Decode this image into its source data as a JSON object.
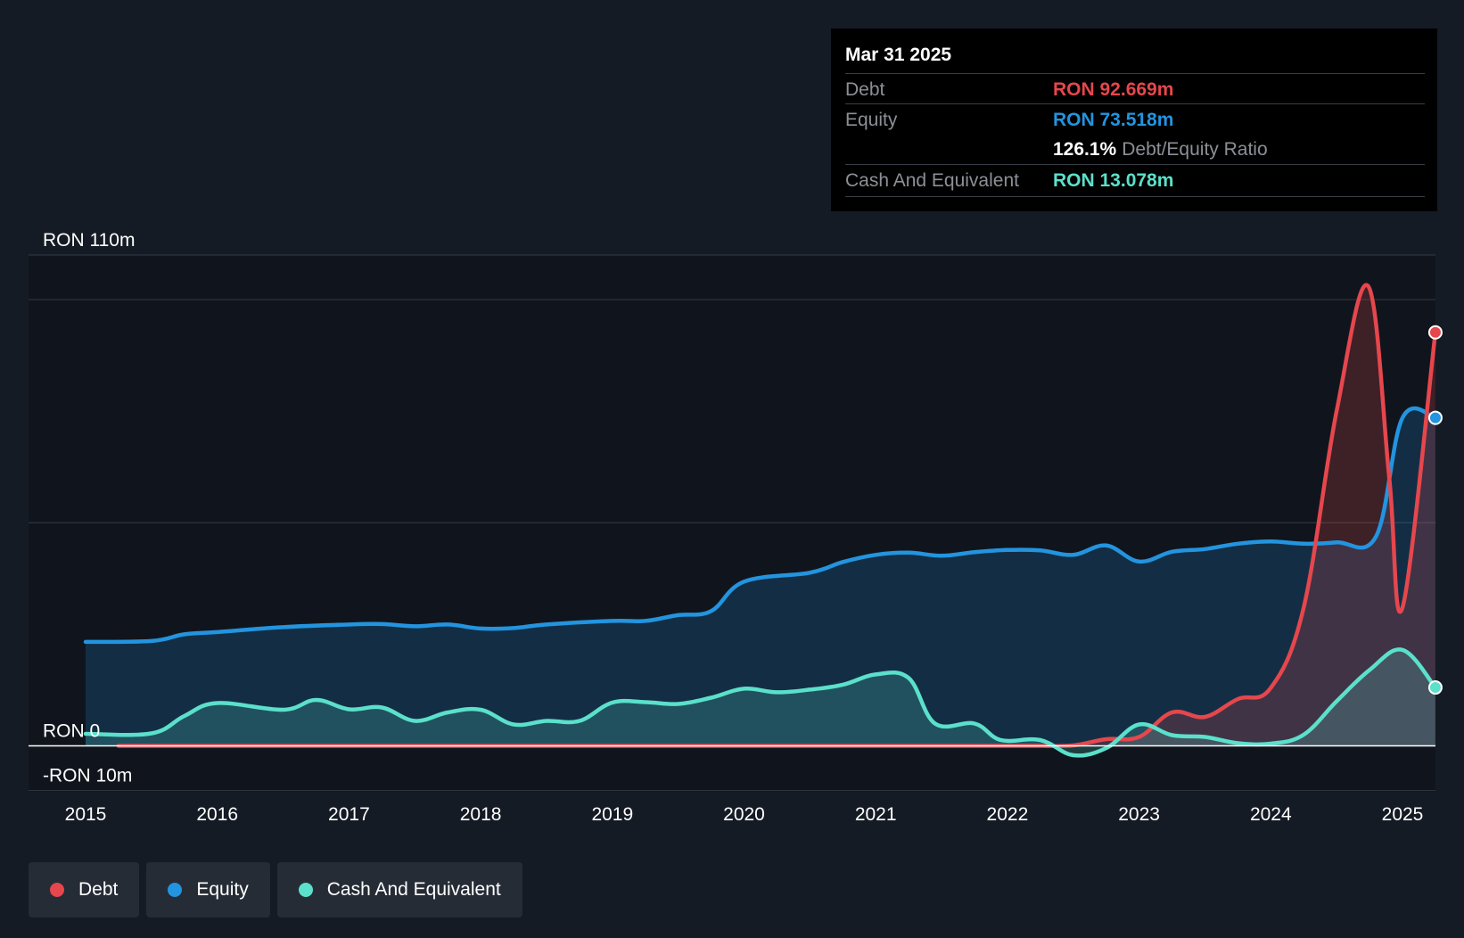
{
  "chart_data": {
    "type": "area",
    "title": "",
    "xlabel": "",
    "ylabel": "",
    "ylim": [
      -10,
      110
    ],
    "y_tick_labels": [
      {
        "value": 110,
        "label": "RON 110m"
      },
      {
        "value": 0,
        "label": "RON 0"
      },
      {
        "value": -10,
        "label": "-RON 10m"
      }
    ],
    "x_ticks": [
      {
        "value": 2015,
        "label": "2015"
      },
      {
        "value": 2016,
        "label": "2016"
      },
      {
        "value": 2017,
        "label": "2017"
      },
      {
        "value": 2018,
        "label": "2018"
      },
      {
        "value": 2019,
        "label": "2019"
      },
      {
        "value": 2020,
        "label": "2020"
      },
      {
        "value": 2021,
        "label": "2021"
      },
      {
        "value": 2022,
        "label": "2022"
      },
      {
        "value": 2023,
        "label": "2023"
      },
      {
        "value": 2024,
        "label": "2024"
      },
      {
        "value": 2025,
        "label": "2025"
      }
    ],
    "xlim": [
      2014.57,
      2025.25
    ],
    "series": [
      {
        "name": "Debt",
        "color": "#e5474d",
        "points": [
          [
            2015.25,
            0
          ],
          [
            2016,
            0
          ],
          [
            2017,
            0
          ],
          [
            2018,
            0
          ],
          [
            2019,
            0
          ],
          [
            2020,
            0
          ],
          [
            2021,
            0
          ],
          [
            2022,
            0
          ],
          [
            2022.25,
            0
          ],
          [
            2022.5,
            0.1
          ],
          [
            2022.75,
            1.5
          ],
          [
            2023,
            2
          ],
          [
            2023.25,
            7.5
          ],
          [
            2023.5,
            6.5
          ],
          [
            2023.75,
            10.5
          ],
          [
            2024,
            13
          ],
          [
            2024.25,
            31
          ],
          [
            2024.5,
            75
          ],
          [
            2024.74,
            103
          ],
          [
            2024.9,
            60
          ],
          [
            2025,
            31
          ],
          [
            2025.25,
            92.669
          ]
        ]
      },
      {
        "name": "Equity",
        "color": "#2394df",
        "points": [
          [
            2015,
            23.3
          ],
          [
            2015.5,
            23.5
          ],
          [
            2015.75,
            25
          ],
          [
            2016,
            25.5
          ],
          [
            2016.5,
            26.6
          ],
          [
            2017,
            27.2
          ],
          [
            2017.25,
            27.3
          ],
          [
            2017.5,
            26.8
          ],
          [
            2017.75,
            27.2
          ],
          [
            2018,
            26.3
          ],
          [
            2018.25,
            26.4
          ],
          [
            2018.5,
            27.2
          ],
          [
            2019,
            28
          ],
          [
            2019.25,
            28
          ],
          [
            2019.5,
            29.3
          ],
          [
            2019.75,
            30.2
          ],
          [
            2020,
            36.8
          ],
          [
            2020.5,
            38.8
          ],
          [
            2020.75,
            41.2
          ],
          [
            2021,
            42.8
          ],
          [
            2021.25,
            43.3
          ],
          [
            2021.5,
            42.6
          ],
          [
            2021.75,
            43.4
          ],
          [
            2022,
            43.9
          ],
          [
            2022.25,
            43.8
          ],
          [
            2022.5,
            42.8
          ],
          [
            2022.75,
            44.9
          ],
          [
            2023,
            41.3
          ],
          [
            2023.25,
            43.5
          ],
          [
            2023.5,
            44.1
          ],
          [
            2023.75,
            45.3
          ],
          [
            2024,
            45.8
          ],
          [
            2024.25,
            45.3
          ],
          [
            2024.5,
            45.6
          ],
          [
            2024.8,
            47
          ],
          [
            2025,
            73.518
          ],
          [
            2025.25,
            73.518
          ]
        ]
      },
      {
        "name": "Cash And Equivalent",
        "color": "#5be0cb",
        "points": [
          [
            2015,
            2.7
          ],
          [
            2015.5,
            2.8
          ],
          [
            2015.75,
            6.7
          ],
          [
            2016,
            9.6
          ],
          [
            2016.5,
            8.1
          ],
          [
            2016.75,
            10.3
          ],
          [
            2017,
            8.2
          ],
          [
            2017.25,
            8.6
          ],
          [
            2017.5,
            5.6
          ],
          [
            2017.75,
            7.5
          ],
          [
            2018,
            8.1
          ],
          [
            2018.25,
            4.8
          ],
          [
            2018.5,
            5.6
          ],
          [
            2018.75,
            5.6
          ],
          [
            2019,
            9.7
          ],
          [
            2019.25,
            9.8
          ],
          [
            2019.5,
            9.4
          ],
          [
            2019.75,
            10.8
          ],
          [
            2020,
            12.8
          ],
          [
            2020.25,
            12
          ],
          [
            2020.5,
            12.6
          ],
          [
            2020.75,
            13.7
          ],
          [
            2021,
            16
          ],
          [
            2021.25,
            15.2
          ],
          [
            2021.45,
            5
          ],
          [
            2021.75,
            5
          ],
          [
            2021.95,
            1.3
          ],
          [
            2022.25,
            1.3
          ],
          [
            2022.5,
            -2.1
          ],
          [
            2022.75,
            -0.5
          ],
          [
            2023,
            4.8
          ],
          [
            2023.25,
            2.4
          ],
          [
            2023.5,
            2
          ],
          [
            2023.75,
            0.6
          ],
          [
            2024,
            0.5
          ],
          [
            2024.25,
            2.5
          ],
          [
            2024.5,
            10
          ],
          [
            2024.75,
            17
          ],
          [
            2025,
            21.5
          ],
          [
            2025.25,
            13.078
          ]
        ]
      }
    ]
  },
  "tooltip": {
    "date": "Mar 31 2025",
    "debt_label": "Debt",
    "debt_value": "RON 92.669m",
    "equity_label": "Equity",
    "equity_value": "RON 73.518m",
    "ratio_value": "126.1%",
    "ratio_label": "Debt/Equity Ratio",
    "cash_label": "Cash And Equivalent",
    "cash_value": "RON 13.078m"
  },
  "legend": [
    {
      "label": "Debt",
      "color": "#e5474d"
    },
    {
      "label": "Equity",
      "color": "#2394df"
    },
    {
      "label": "Cash And Equivalent",
      "color": "#5be0cb"
    }
  ]
}
